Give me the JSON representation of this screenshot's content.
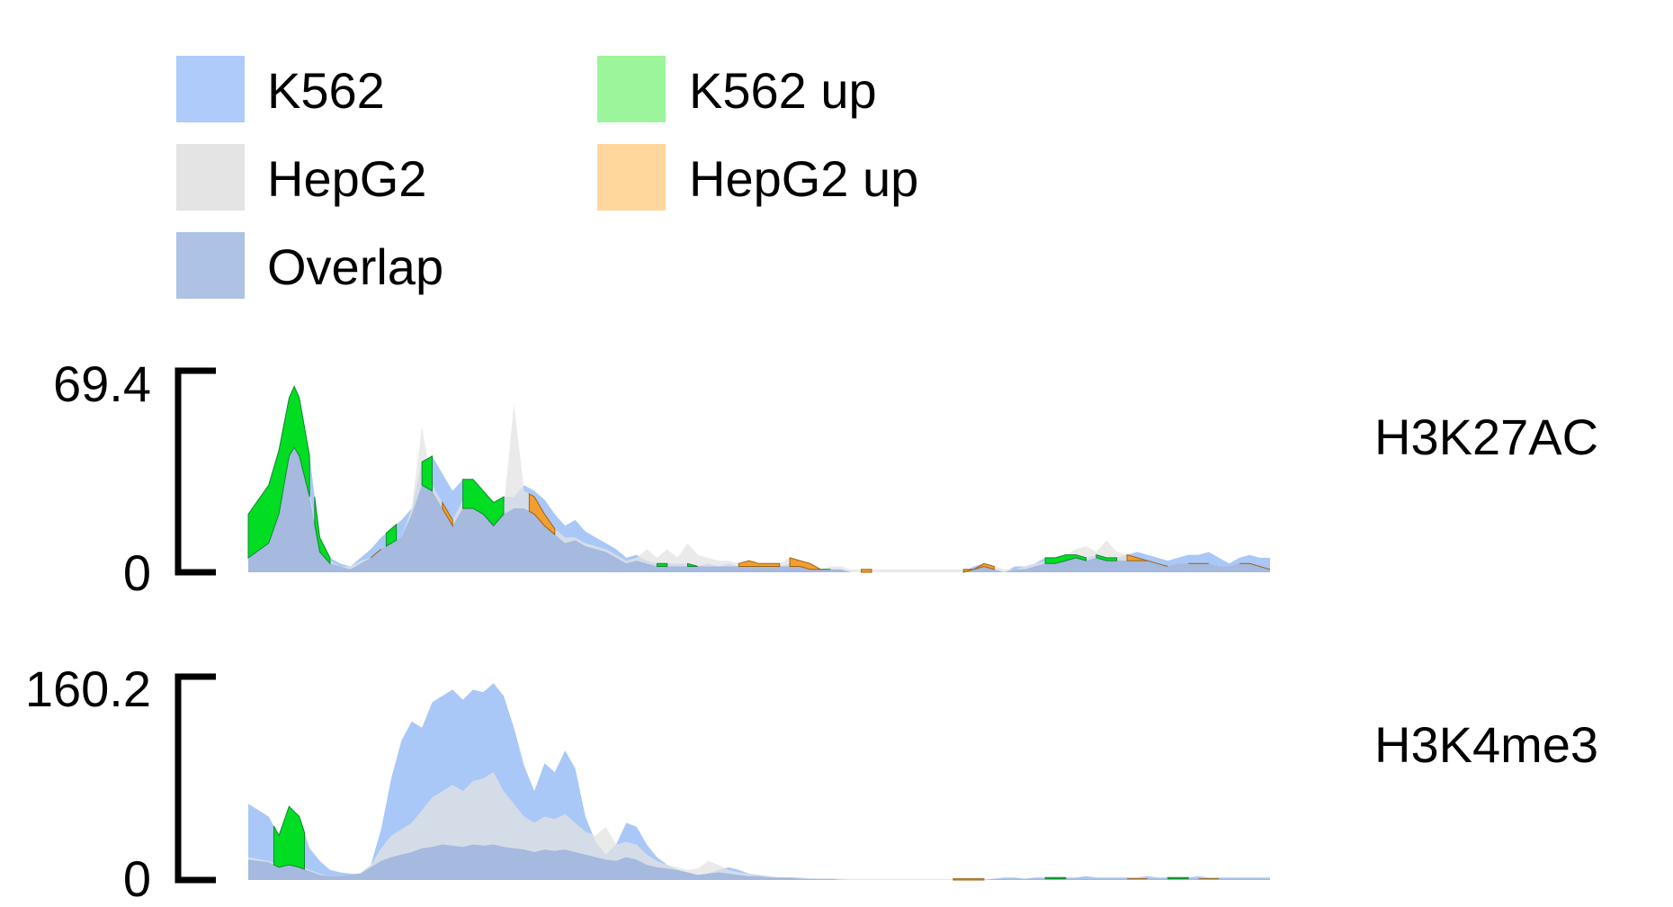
{
  "colors": {
    "k562": "#a9c8f7",
    "hepg2": "#e3e3e3",
    "overlap": "#a6b9de",
    "k562_up": "#00dd22",
    "hepg2_up": "#f0a030",
    "k562_up_legend": "#9cf59a",
    "hepg2_up_legend": "#ffd79c",
    "axis": "#000000"
  },
  "legend": [
    {
      "key": "k562",
      "label": "K562",
      "color": "#aecbfa"
    },
    {
      "key": "hepg2",
      "label": "HepG2",
      "color": "#e4e4e4"
    },
    {
      "key": "overlap",
      "label": "Overlap",
      "color": "#aec2e5"
    },
    {
      "key": "k562_up",
      "label": "K562 up",
      "color": "#9cf59a"
    },
    {
      "key": "hepg2_up",
      "label": "HepG2 up",
      "color": "#ffd79c"
    }
  ],
  "chart_data": {
    "type": "area",
    "x_range": [
      0,
      100
    ],
    "legend_position": "top-left",
    "grid": false,
    "tracks": [
      {
        "label": "H3K27AC",
        "ylim": [
          0,
          69.4
        ],
        "ytick_top": "69.4",
        "ytick_bottom": "0",
        "x": [
          0,
          2,
          3,
          4,
          4.5,
          5,
          6,
          7,
          8,
          9,
          10,
          11,
          12,
          13,
          14,
          15,
          16,
          17,
          18,
          19,
          20,
          21,
          22,
          23,
          24,
          25,
          26,
          27,
          28,
          29,
          30,
          31,
          32,
          33,
          34,
          35,
          36,
          37,
          38,
          39,
          40,
          41,
          42,
          43,
          44,
          45,
          46,
          47,
          48,
          49,
          50,
          51,
          52,
          53,
          54,
          55,
          56,
          57,
          58,
          59,
          60,
          61,
          62,
          63,
          64,
          65,
          66,
          67,
          68,
          69,
          70,
          71,
          72,
          73,
          74,
          75,
          76,
          77,
          78,
          79,
          80,
          81,
          82,
          83,
          84,
          85,
          86,
          87,
          88,
          89,
          90,
          91,
          92,
          93,
          94,
          95,
          96,
          97,
          98,
          99,
          100
        ],
        "k562": [
          20,
          30,
          42,
          60,
          64,
          60,
          40,
          12,
          5,
          3,
          2,
          5,
          8,
          12,
          15,
          18,
          22,
          38,
          40,
          34,
          28,
          32,
          32,
          28,
          24,
          26,
          26,
          30,
          28,
          25,
          20,
          16,
          18,
          14,
          12,
          10,
          8,
          5,
          6,
          4,
          3,
          3,
          3,
          3,
          2,
          3,
          2,
          3,
          2,
          3,
          2,
          2,
          2,
          3,
          2,
          1,
          1,
          1,
          1,
          0,
          0,
          0,
          0,
          0,
          0,
          0,
          0,
          0,
          0,
          0,
          0,
          2,
          3,
          1,
          0,
          2,
          2,
          3,
          5,
          5,
          6,
          6,
          5,
          6,
          5,
          5,
          6,
          7,
          6,
          5,
          4,
          5,
          6,
          6,
          7,
          5,
          3,
          5,
          6,
          5,
          5
        ],
        "hepg2": [
          5,
          10,
          20,
          42,
          45,
          42,
          28,
          8,
          4,
          2,
          2,
          4,
          5,
          8,
          10,
          12,
          22,
          50,
          30,
          24,
          18,
          25,
          25,
          22,
          18,
          22,
          58,
          28,
          26,
          20,
          15,
          12,
          12,
          10,
          9,
          8,
          6,
          4,
          5,
          8,
          5,
          8,
          5,
          10,
          6,
          5,
          4,
          4,
          3,
          4,
          3,
          3,
          3,
          5,
          4,
          3,
          1,
          2,
          2,
          1,
          1,
          1,
          1,
          1,
          1,
          1,
          1,
          1,
          1,
          1,
          1,
          1,
          3,
          2,
          1,
          1,
          2,
          3,
          4,
          5,
          6,
          8,
          9,
          7,
          11,
          7,
          6,
          5,
          4,
          3,
          2,
          3,
          3,
          3,
          3,
          2,
          2,
          3,
          3,
          2,
          1
        ],
        "overlap": [
          5,
          10,
          20,
          40,
          43,
          40,
          26,
          7,
          3,
          2,
          1,
          3,
          5,
          8,
          10,
          12,
          20,
          30,
          28,
          22,
          16,
          22,
          22,
          20,
          16,
          20,
          22,
          22,
          20,
          16,
          13,
          10,
          11,
          9,
          8,
          7,
          5,
          3,
          4,
          3,
          2,
          2,
          2,
          2,
          2,
          2,
          2,
          2,
          2,
          2,
          2,
          2,
          2,
          2,
          2,
          1,
          1,
          1,
          1,
          0,
          0,
          0,
          0,
          0,
          0,
          0,
          0,
          0,
          0,
          0,
          0,
          1,
          2,
          1,
          0,
          1,
          1,
          2,
          3,
          3,
          4,
          5,
          4,
          5,
          4,
          4,
          4,
          4,
          4,
          3,
          2,
          3,
          3,
          3,
          3,
          2,
          2,
          3,
          3,
          2,
          1
        ],
        "k562_up_segments": [
          [
            0,
            6
          ],
          [
            6.5,
            8
          ],
          [
            13.5,
            14.5
          ],
          [
            17,
            18
          ],
          [
            21,
            25
          ],
          [
            40,
            41
          ],
          [
            43,
            44
          ],
          [
            50,
            51
          ],
          [
            53,
            54
          ],
          [
            56,
            57
          ],
          [
            78,
            82
          ],
          [
            83,
            85
          ]
        ],
        "hepg2_up_segments": [
          [
            12,
            13
          ],
          [
            19,
            20
          ],
          [
            27.5,
            30
          ],
          [
            48,
            52
          ],
          [
            53,
            56
          ],
          [
            60,
            61
          ],
          [
            70,
            73
          ],
          [
            86,
            90
          ],
          [
            92,
            94
          ],
          [
            97,
            100
          ]
        ]
      },
      {
        "label": "H3K4me3",
        "ylim": [
          0,
          160.2
        ],
        "ytick_top": "160.2",
        "ytick_bottom": "0",
        "x": [
          0,
          2,
          3,
          4,
          5,
          6,
          7,
          8,
          9,
          10,
          11,
          12,
          13,
          14,
          15,
          16,
          17,
          18,
          19,
          20,
          21,
          22,
          23,
          24,
          25,
          26,
          27,
          28,
          29,
          30,
          31,
          32,
          33,
          34,
          35,
          36,
          37,
          38,
          39,
          40,
          41,
          42,
          43,
          44,
          45,
          46,
          47,
          48,
          49,
          50,
          51,
          52,
          53,
          54,
          55,
          56,
          57,
          58,
          59,
          60,
          61,
          62,
          63,
          64,
          65,
          66,
          67,
          68,
          69,
          70,
          71,
          72,
          73,
          74,
          75,
          76,
          77,
          78,
          79,
          80,
          81,
          82,
          83,
          84,
          85,
          86,
          87,
          88,
          89,
          90,
          91,
          92,
          93,
          94,
          95,
          96,
          97,
          98,
          99,
          100
        ],
        "k562": [
          60,
          50,
          35,
          58,
          50,
          25,
          15,
          8,
          6,
          5,
          5,
          12,
          40,
          80,
          110,
          125,
          120,
          140,
          145,
          150,
          142,
          150,
          148,
          155,
          145,
          120,
          90,
          70,
          92,
          85,
          102,
          88,
          50,
          30,
          20,
          28,
          45,
          42,
          28,
          18,
          12,
          8,
          6,
          4,
          5,
          8,
          10,
          8,
          5,
          4,
          3,
          2,
          2,
          2,
          1,
          1,
          1,
          1,
          0,
          0,
          0,
          0,
          0,
          0,
          0,
          0,
          0,
          0,
          0,
          0,
          0,
          0,
          1,
          2,
          2,
          1,
          2,
          2,
          2,
          2,
          2,
          3,
          2,
          2,
          2,
          2,
          2,
          3,
          2,
          2,
          2,
          2,
          3,
          2,
          2,
          2,
          2,
          2,
          2,
          2
        ],
        "hepg2": [
          18,
          15,
          12,
          14,
          12,
          8,
          5,
          3,
          3,
          4,
          6,
          12,
          25,
          35,
          40,
          45,
          55,
          65,
          70,
          75,
          70,
          78,
          80,
          85,
          70,
          60,
          50,
          45,
          50,
          48,
          52,
          45,
          38,
          35,
          42,
          28,
          30,
          28,
          20,
          15,
          12,
          10,
          8,
          9,
          15,
          12,
          8,
          6,
          5,
          4,
          3,
          2,
          2,
          2,
          1,
          1,
          1,
          1,
          1,
          1,
          1,
          1,
          1,
          1,
          1,
          1,
          1,
          1,
          1,
          1,
          1,
          1,
          1,
          1,
          1,
          1,
          1,
          1,
          1,
          1,
          1,
          1,
          1,
          1,
          1,
          1,
          1,
          1,
          1,
          1,
          1,
          1,
          1,
          1,
          1,
          1,
          1,
          1,
          1,
          1
        ],
        "overlap": [
          16,
          14,
          10,
          12,
          10,
          7,
          4,
          3,
          3,
          4,
          5,
          10,
          15,
          18,
          20,
          22,
          25,
          26,
          28,
          27,
          26,
          28,
          27,
          28,
          26,
          25,
          24,
          22,
          24,
          23,
          24,
          22,
          20,
          18,
          16,
          15,
          18,
          16,
          12,
          10,
          9,
          8,
          6,
          4,
          5,
          6,
          5,
          4,
          3,
          3,
          2,
          2,
          2,
          1,
          1,
          1,
          1,
          0,
          0,
          0,
          0,
          0,
          0,
          0,
          0,
          0,
          0,
          0,
          0,
          0,
          0,
          0,
          1,
          1,
          1,
          1,
          1,
          1,
          1,
          1,
          1,
          1,
          1,
          1,
          1,
          1,
          1,
          1,
          1,
          1,
          1,
          1,
          1,
          1,
          1,
          1,
          1,
          1,
          1,
          1
        ],
        "k562_up_segments": [
          [
            2.5,
            5.5
          ],
          [
            78,
            80
          ],
          [
            90,
            92
          ]
        ],
        "hepg2_up_segments": [
          [
            69,
            72
          ],
          [
            86,
            88
          ],
          [
            93,
            95
          ]
        ]
      }
    ]
  }
}
